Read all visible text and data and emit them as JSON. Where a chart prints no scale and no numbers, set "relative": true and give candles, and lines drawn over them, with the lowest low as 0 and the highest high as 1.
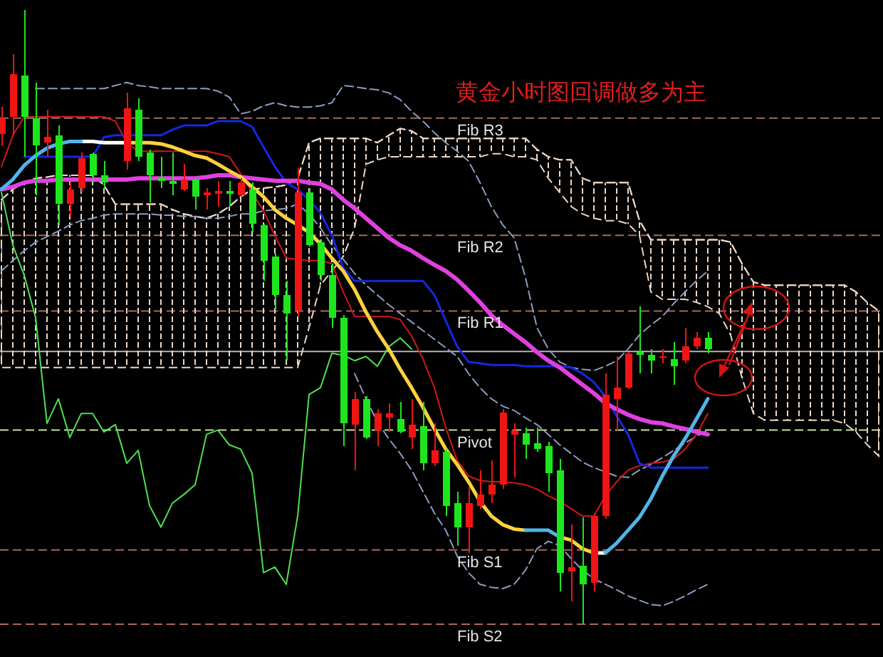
{
  "chart_data": {
    "type": "candlestick",
    "title": "黄金小时图回调做多为主",
    "relative": true,
    "categories": [
      null,
      null,
      null,
      null,
      null,
      null,
      null,
      null,
      null,
      null,
      null,
      null,
      null,
      null,
      null,
      null,
      null,
      null,
      null,
      null,
      null,
      null,
      null,
      null,
      null,
      null,
      null,
      null,
      null,
      null,
      null,
      null,
      null,
      null,
      null,
      null,
      null,
      null,
      null,
      null,
      null,
      null,
      null,
      null,
      null,
      null,
      null,
      null,
      null,
      null,
      null,
      null,
      null,
      null,
      null,
      null,
      null,
      null,
      null,
      null,
      null,
      null,
      null,
      null,
      null,
      null,
      null,
      null,
      null,
      null,
      null,
      null,
      null,
      null,
      null,
      null,
      null,
      null
    ],
    "ref_lines": [
      {
        "axis": "y",
        "value": 0.824,
        "label": "Fib R3",
        "color": "#a8685a",
        "line_style": "dashed"
      },
      {
        "axis": "y",
        "value": 0.633,
        "label": "Fib R2",
        "color": "#a8685a",
        "line_style": "dashed"
      },
      {
        "axis": "y",
        "value": 0.51,
        "label": "Fib R1",
        "color": "#a8685a",
        "line_style": "dashed"
      },
      {
        "axis": "y",
        "value": 0.444,
        "color": "#b4b4b4",
        "line_style": "solid"
      },
      {
        "axis": "y",
        "value": 0.316,
        "label": "Pivot",
        "color": "#c8e0a0",
        "line_style": "dashed"
      },
      {
        "axis": "y",
        "value": 0.121,
        "label": "Fib S1",
        "color": "#a8685a",
        "line_style": "dashed"
      },
      {
        "axis": "y",
        "value": 0,
        "label": "Fib S2",
        "color": "#a8685a",
        "line_style": "dashed"
      }
    ],
    "series": [
      {
        "type": "line",
        "color": "#ecd6c6",
        "line_style": "dashed",
        "values": [
          0.691,
          0.708,
          0.719,
          0.726,
          0.728,
          0.731,
          0.731,
          0.731,
          0.731,
          0.715,
          0.684,
          0.684,
          0.684,
          0.684,
          0.684,
          0.675,
          0.668,
          0.664,
          0.661,
          0.668,
          0.68,
          0.696,
          0.708,
          0.71,
          0.712,
          0.715,
          0.726,
          0.784,
          0.791,
          0.791,
          0.791,
          0.791,
          0.791,
          0.784,
          0.796,
          0.807,
          0.803,
          0.791,
          0.791,
          0.791,
          0.791,
          0.791,
          0.791,
          0.791,
          0.791,
          0.791,
          0.791,
          0.773,
          0.761,
          0.756,
          0.756,
          0.726,
          0.719,
          0.719,
          0.719,
          0.719,
          0.657,
          0.626,
          0.626,
          0.626,
          0.626,
          0.626,
          0.626,
          0.626,
          0.622,
          0.587,
          0.557,
          0.552,
          0.552,
          0.552,
          0.552,
          0.552,
          0.552,
          0.552,
          0.552,
          0.541,
          0.524,
          0.51
        ],
        "upper": [
          0.691,
          0.708,
          0.719,
          0.726,
          0.728,
          0.731,
          0.731,
          0.731,
          0.731,
          0.715,
          0.684,
          0.684,
          0.684,
          0.684,
          0.684,
          0.675,
          0.668,
          0.664,
          0.661,
          0.668,
          0.68,
          0.696,
          0.708,
          0.71,
          0.712,
          0.715,
          0.726,
          0.784,
          0.791,
          0.791,
          0.791,
          0.791,
          0.791,
          0.784,
          0.796,
          0.807,
          0.803,
          0.791,
          0.791,
          0.791,
          0.791,
          0.791,
          0.791,
          0.791,
          0.791,
          0.791,
          0.791,
          0.773,
          0.761,
          0.756,
          0.756,
          0.726,
          0.719,
          0.719,
          0.719,
          0.719,
          0.657,
          0.626,
          0.626,
          0.626,
          0.626,
          0.626,
          0.626,
          0.626,
          0.622,
          0.587,
          0.557,
          0.552,
          0.552,
          0.552,
          0.552,
          0.552,
          0.552,
          0.552,
          0.552,
          0.541,
          0.524,
          0.51
        ],
        "lower": [
          0.418,
          0.418,
          0.418,
          0.418,
          0.418,
          0.418,
          0.418,
          0.418,
          0.418,
          0.418,
          0.418,
          0.418,
          0.418,
          0.418,
          0.418,
          0.418,
          0.418,
          0.418,
          0.418,
          0.418,
          0.418,
          0.418,
          0.418,
          0.418,
          0.418,
          0.418,
          0.418,
          0.483,
          0.552,
          0.575,
          0.599,
          0.645,
          0.749,
          0.756,
          0.761,
          0.761,
          0.761,
          0.761,
          0.761,
          0.761,
          0.761,
          0.761,
          0.761,
          0.766,
          0.766,
          0.761,
          0.761,
          0.756,
          0.726,
          0.703,
          0.68,
          0.668,
          0.661,
          0.657,
          0.657,
          0.652,
          0.633,
          0.541,
          0.529,
          0.529,
          0.529,
          0.524,
          0.517,
          0.506,
          0.471,
          0.401,
          0.343,
          0.332,
          0.332,
          0.332,
          0.332,
          0.332,
          0.332,
          0.332,
          0.327,
          0.313,
          0.292,
          0.274
        ]
      },
      {
        "type": "line",
        "color": "#8c9cc0",
        "line_style": "dashed",
        "values": [
          null,
          null,
          null,
          0.872,
          0.872,
          0.872,
          0.872,
          0.872,
          0.872,
          0.872,
          0.877,
          0.882,
          0.877,
          0.875,
          0.872,
          0.872,
          0.872,
          0.872,
          0.872,
          0.868,
          0.858,
          0.831,
          0.835,
          0.844,
          0.849,
          0.844,
          0.842,
          0.842,
          0.844,
          0.849,
          0.877,
          0.875,
          0.872,
          0.87,
          0.865,
          0.854,
          0.835,
          0.819,
          0.8,
          0.784,
          0.77,
          0.754,
          0.719,
          0.68,
          0.65,
          0.629,
          0.564,
          0.483,
          0.448,
          0.427,
          0.418,
          0.415,
          0.413,
          0.42,
          0.429,
          0.448,
          0.471,
          0.487,
          0.501,
          0.522,
          0.541,
          0.559,
          0.575,
          null,
          null,
          null,
          null,
          null,
          null,
          null,
          null,
          null,
          null,
          null,
          null,
          null,
          null,
          null
        ]
      },
      {
        "type": "line",
        "color": "#8c9cc0",
        "line_style": "dashed",
        "values": [
          0.575,
          0.592,
          0.608,
          0.622,
          0.631,
          0.64,
          0.65,
          0.657,
          0.661,
          0.666,
          0.668,
          0.668,
          0.668,
          0.668,
          0.666,
          0.666,
          0.664,
          0.664,
          0.661,
          0.661,
          0.664,
          0.668,
          0.668,
          0.673,
          0.675,
          0.677,
          0.684,
          0.668,
          0.645,
          0.617,
          0.594,
          0.571,
          0.552,
          0.536,
          0.52,
          0.506,
          0.492,
          0.478,
          0.464,
          0.45,
          0.436,
          0.408,
          0.385,
          0.367,
          0.355,
          0.348,
          0.336,
          0.325,
          0.309,
          0.292,
          0.278,
          0.264,
          0.255,
          0.248,
          0.241,
          0.239,
          0.251,
          0.26,
          0.271,
          0.283,
          0.295,
          0.306,
          0.316,
          null,
          null,
          null,
          null,
          null,
          null,
          null,
          null,
          null,
          null,
          null,
          null,
          null,
          null,
          null
        ]
      },
      {
        "type": "line",
        "color": "#8c9cc0",
        "line_style": "dashed",
        "values": [
          null,
          null,
          null,
          null,
          null,
          null,
          null,
          null,
          null,
          null,
          null,
          null,
          null,
          null,
          null,
          null,
          null,
          null,
          null,
          null,
          null,
          null,
          null,
          null,
          null,
          null,
          null,
          null,
          null,
          null,
          null,
          0.408,
          0.367,
          0.329,
          0.302,
          0.278,
          0.251,
          0.216,
          0.181,
          0.153,
          0.111,
          0.084,
          0.065,
          0.06,
          0.058,
          0.065,
          0.088,
          0.123,
          0.135,
          0.128,
          0.107,
          0.088,
          0.074,
          0.065,
          0.056,
          0.046,
          0.039,
          0.032,
          0.03,
          0.037,
          0.046,
          0.056,
          0.065,
          null,
          null,
          null,
          null,
          null,
          null,
          null,
          null,
          null,
          null,
          null,
          null,
          null,
          null,
          null
        ]
      },
      {
        "type": "line",
        "color": "#4ee04e",
        "values": [
          0.703,
          0.617,
          0.568,
          0.499,
          0.327,
          0.367,
          0.304,
          0.343,
          0.343,
          0.313,
          0.325,
          0.262,
          0.283,
          0.193,
          0.158,
          0.197,
          0.211,
          0.227,
          0.309,
          0.316,
          0.292,
          0.285,
          0.246,
          0.084,
          0.093,
          0.065,
          0.176,
          0.374,
          0.385,
          0.441,
          0.438,
          0.429,
          0.436,
          0.42,
          0.452,
          0.466,
          0.448,
          null,
          null,
          null,
          null,
          null,
          null,
          null,
          null,
          null,
          null,
          null,
          null,
          null,
          null,
          null,
          null,
          null,
          null,
          null,
          null,
          null,
          null,
          null,
          null,
          null,
          null,
          null,
          null,
          null,
          null,
          null,
          null,
          null,
          null,
          null,
          null,
          null,
          null,
          null,
          null,
          null
        ]
      },
      {
        "type": "line",
        "color": "#d01818",
        "values": [
          0.745,
          0.796,
          0.826,
          0.826,
          0.826,
          0.826,
          0.826,
          0.826,
          0.826,
          0.826,
          0.819,
          0.784,
          0.77,
          0.77,
          0.77,
          0.77,
          0.77,
          0.77,
          0.77,
          0.766,
          0.761,
          0.733,
          0.703,
          0.673,
          0.633,
          0.596,
          0.594,
          0.592,
          0.592,
          0.587,
          0.541,
          0.501,
          0.501,
          0.501,
          0.501,
          0.496,
          0.469,
          0.432,
          0.385,
          0.32,
          0.267,
          0.241,
          0.234,
          0.232,
          0.232,
          0.23,
          0.227,
          0.22,
          0.209,
          0.2,
          0.188,
          0.176,
          0.176,
          0.209,
          0.232,
          0.251,
          0.258,
          0.262,
          0.264,
          0.269,
          0.285,
          0.309,
          0.343,
          null,
          null,
          null,
          null,
          null,
          null,
          null,
          null,
          null,
          null,
          null,
          null,
          null,
          null,
          null
        ]
      },
      {
        "type": "line",
        "color": "#1428e0",
        "values": [
          null,
          null,
          0.761,
          0.761,
          0.761,
          0.761,
          0.761,
          0.761,
          0.761,
          0.793,
          0.796,
          0.796,
          0.796,
          0.796,
          0.796,
          0.805,
          0.812,
          0.812,
          0.812,
          0.819,
          0.819,
          0.819,
          0.81,
          0.777,
          0.745,
          0.719,
          0.708,
          0.691,
          0.67,
          0.633,
          0.58,
          0.559,
          0.559,
          0.559,
          0.559,
          0.559,
          0.559,
          0.559,
          0.536,
          0.494,
          0.452,
          0.427,
          0.425,
          0.422,
          0.422,
          0.422,
          0.42,
          0.42,
          0.42,
          0.42,
          0.418,
          0.408,
          0.394,
          0.371,
          0.339,
          0.309,
          0.262,
          0.255,
          0.255,
          0.255,
          0.255,
          0.255,
          0.255,
          null,
          null,
          null,
          null,
          null,
          null,
          null,
          null,
          null,
          null,
          null,
          null,
          null,
          null,
          null
        ]
      },
      {
        "type": "line",
        "color": "#e040e0",
        "values": [
          0.708,
          0.712,
          0.719,
          0.722,
          0.722,
          0.724,
          0.724,
          0.724,
          0.724,
          0.724,
          0.724,
          0.724,
          0.726,
          0.726,
          0.726,
          0.726,
          0.726,
          0.726,
          0.728,
          0.731,
          0.731,
          0.728,
          0.726,
          0.724,
          0.722,
          0.722,
          0.722,
          0.719,
          0.717,
          0.708,
          0.691,
          0.677,
          0.661,
          0.645,
          0.629,
          0.617,
          0.608,
          0.596,
          0.585,
          0.575,
          0.561,
          0.543,
          0.524,
          0.503,
          0.487,
          0.473,
          0.459,
          0.443,
          0.429,
          0.418,
          0.404,
          0.39,
          0.376,
          0.36,
          0.35,
          0.341,
          0.334,
          0.329,
          0.327,
          0.322,
          0.318,
          0.313,
          0.309,
          null,
          null,
          null,
          null,
          null,
          null,
          null,
          null,
          null,
          null,
          null,
          null,
          null,
          null,
          null
        ]
      },
      {
        "type": "line",
        "color": "#ffd23c",
        "values": [
          null,
          null,
          null,
          null,
          null,
          null,
          null,
          null,
          null,
          null,
          null,
          0.784,
          0.784,
          0.784,
          0.782,
          0.777,
          0.77,
          0.763,
          0.759,
          0.749,
          0.738,
          0.728,
          0.712,
          0.696,
          0.675,
          0.661,
          0.65,
          0.638,
          0.619,
          0.596,
          0.575,
          0.545,
          0.508,
          0.476,
          0.448,
          0.415,
          0.385,
          0.353,
          0.318,
          0.285,
          0.26,
          0.232,
          0.2,
          0.176,
          0.162,
          0.155,
          0.153,
          null,
          null,
          0.142,
          0.137,
          0.123,
          0.116,
          null,
          null,
          null,
          null,
          null,
          null,
          null,
          null,
          null,
          null,
          null,
          null,
          null,
          null,
          null,
          null,
          null,
          null,
          null,
          null,
          null,
          null,
          null,
          null,
          null
        ]
      },
      {
        "type": "line",
        "color": "#ffffff",
        "values": [
          null,
          null,
          null,
          null,
          null,
          null,
          null,
          0.786,
          0.786,
          0.784,
          0.784,
          0.784,
          null,
          null,
          null,
          null,
          null,
          null,
          null,
          null,
          null,
          null,
          null,
          null,
          null,
          null,
          null,
          null,
          null,
          null,
          null,
          null,
          null,
          null,
          null,
          null,
          null,
          null,
          null,
          null,
          null,
          null,
          null,
          null,
          null,
          null,
          null,
          null,
          null,
          null,
          null,
          null,
          0.116,
          0.116,
          null,
          null,
          null,
          null,
          null,
          null,
          null,
          null,
          null,
          null,
          null,
          null,
          null,
          null,
          null,
          null,
          null,
          null,
          null,
          null,
          null,
          null,
          null,
          null
        ]
      },
      {
        "type": "line",
        "color": "#50b4e8",
        "values": [
          0.708,
          0.724,
          0.747,
          0.763,
          0.775,
          0.782,
          0.786,
          0.786,
          null,
          null,
          null,
          null,
          null,
          null,
          null,
          null,
          null,
          null,
          null,
          null,
          null,
          null,
          null,
          null,
          null,
          null,
          null,
          null,
          null,
          null,
          null,
          null,
          null,
          null,
          null,
          null,
          null,
          null,
          null,
          null,
          null,
          null,
          null,
          null,
          null,
          null,
          0.153,
          0.153,
          0.153,
          0.142,
          null,
          null,
          null,
          0.116,
          0.132,
          0.153,
          0.174,
          0.204,
          0.241,
          0.274,
          0.302,
          0.334,
          0.367,
          null,
          null,
          null,
          null,
          null,
          null,
          null,
          null,
          null,
          null,
          null,
          null,
          null,
          null,
          null
        ]
      },
      {
        "ohlc": [
          [
            0.798,
            0.842,
            0.78,
            0.824
          ],
          [
            0.826,
            0.928,
            0.796,
            0.896
          ],
          [
            0.893,
            1,
            0.761,
            0.826
          ],
          [
            0.824,
            0.882,
            0.698,
            0.78
          ],
          [
            0.784,
            0.838,
            0.761,
            0.793
          ],
          [
            0.796,
            0.812,
            0.65,
            0.684
          ],
          [
            0.684,
            0.719,
            0.664,
            0.708
          ],
          [
            0.71,
            0.768,
            0.703,
            0.759
          ],
          [
            0.766,
            0.768,
            0.719,
            0.731
          ],
          [
            0.731,
            0.754,
            0.71,
            0.719
          ],
          null,
          [
            0.754,
            0.865,
            0.74,
            0.84
          ],
          [
            0.838,
            0.856,
            0.754,
            0.761
          ],
          [
            0.768,
            0.773,
            0.687,
            0.731
          ],
          [
            0.726,
            0.761,
            0.71,
            0.722
          ],
          [
            0.722,
            0.768,
            0.698,
            0.717
          ],
          [
            0.708,
            0.749,
            0.705,
            0.724
          ],
          [
            0.724,
            0.726,
            0.675,
            0.696
          ],
          [
            0.698,
            0.71,
            0.675,
            0.703
          ],
          [
            0.701,
            0.722,
            0.68,
            0.705
          ],
          [
            0.705,
            0.722,
            0.68,
            0.701
          ],
          [
            0.698,
            0.726,
            0.696,
            0.719
          ],
          [
            0.708,
            0.719,
            0.638,
            0.652
          ],
          [
            0.65,
            0.652,
            0.559,
            0.592
          ],
          [
            0.599,
            0.603,
            0.513,
            0.536
          ],
          [
            0.536,
            0.559,
            0.429,
            0.506
          ],
          [
            0.51,
            0.742,
            0.501,
            0.703
          ],
          [
            0.703,
            0.71,
            0.615,
            0.617
          ],
          [
            0.622,
            0.626,
            0.559,
            0.568
          ],
          [
            0.568,
            0.587,
            0.483,
            0.499
          ],
          [
            0.499,
            0.503,
            0.29,
            0.327
          ],
          [
            0.325,
            0.378,
            0.251,
            0.367
          ],
          [
            0.367,
            0.371,
            0.302,
            0.304
          ],
          [
            0.316,
            0.35,
            0.29,
            0.343
          ],
          [
            0.336,
            0.36,
            0.313,
            0.343
          ],
          [
            0.334,
            0.362,
            0.311,
            0.313
          ],
          [
            0.304,
            0.367,
            0.285,
            0.325
          ],
          [
            0.322,
            0.362,
            0.251,
            0.262
          ],
          [
            0.262,
            0.327,
            0.258,
            0.283
          ],
          [
            0.281,
            0.285,
            0.176,
            0.193
          ],
          [
            0.197,
            0.216,
            0.128,
            0.158
          ],
          [
            0.158,
            0.223,
            0.116,
            0.197
          ],
          [
            0.193,
            0.251,
            0.188,
            0.211
          ],
          [
            0.211,
            0.267,
            0.197,
            0.227
          ],
          [
            0.227,
            0.35,
            0.22,
            0.345
          ],
          [
            0.309,
            0.327,
            0.239,
            0.316
          ],
          [
            0.311,
            0.32,
            0.269,
            0.292
          ],
          [
            0.295,
            0.32,
            0.281,
            0.285
          ],
          [
            0.29,
            0.297,
            0.216,
            0.246
          ],
          [
            0.251,
            0.269,
            0.053,
            0.084
          ],
          [
            0.086,
            0.162,
            0.037,
            0.093
          ],
          [
            0.095,
            0.174,
            0,
            0.065
          ],
          [
            0.067,
            0.181,
            0.053,
            0.176
          ],
          [
            0.176,
            0.408,
            0.172,
            0.374
          ],
          [
            0.367,
            0.436,
            0.316,
            0.385
          ],
          [
            0.385,
            0.443,
            0.383,
            0.441
          ],
          [
            0.443,
            0.517,
            0.408,
            0.438
          ],
          [
            0.438,
            0.448,
            0.408,
            0.429
          ],
          [
            0.434,
            0.448,
            0.425,
            0.436
          ],
          [
            0.432,
            0.459,
            0.39,
            0.42
          ],
          [
            0.429,
            0.483,
            0.425,
            0.452
          ],
          [
            0.452,
            0.476,
            0.448,
            0.466
          ],
          [
            0.466,
            0.476,
            0.441,
            0.448
          ],
          null,
          null,
          null,
          null,
          null,
          null,
          null,
          null,
          null,
          null,
          null,
          null,
          null,
          null,
          null
        ],
        "colors": [
          "#f01414",
          "#f01414",
          "#1ee61e",
          "#1ee61e",
          "#f01414",
          "#1ee61e",
          "#f01414",
          "#f01414",
          "#1ee61e",
          "#1ee61e",
          null,
          "#f01414",
          "#1ee61e",
          "#1ee61e",
          "#1ee61e",
          "#1ee61e",
          "#f01414",
          "#1ee61e",
          "#f01414",
          "#f01414",
          "#1ee61e",
          "#f01414",
          "#1ee61e",
          "#1ee61e",
          "#1ee61e",
          "#1ee61e",
          "#f01414",
          "#1ee61e",
          "#1ee61e",
          "#1ee61e",
          "#1ee61e",
          "#f01414",
          "#1ee61e",
          "#f01414",
          "#f01414",
          "#1ee61e",
          "#f01414",
          "#1ee61e",
          "#f01414",
          "#1ee61e",
          "#1ee61e",
          "#f01414",
          "#f01414",
          "#f01414",
          "#f01414",
          "#f01414",
          "#1ee61e",
          "#1ee61e",
          "#1ee61e",
          "#1ee61e",
          "#f01414",
          "#1ee61e",
          "#f01414",
          "#f01414",
          "#f01414",
          "#f01414",
          "#1ee61e",
          "#1ee61e",
          "#f01414",
          "#1ee61e",
          "#f01414",
          "#f01414",
          "#1ee61e",
          null,
          null,
          null,
          null,
          null,
          null,
          null,
          null,
          null,
          null,
          null,
          null,
          null,
          null,
          null
        ]
      }
    ]
  }
}
